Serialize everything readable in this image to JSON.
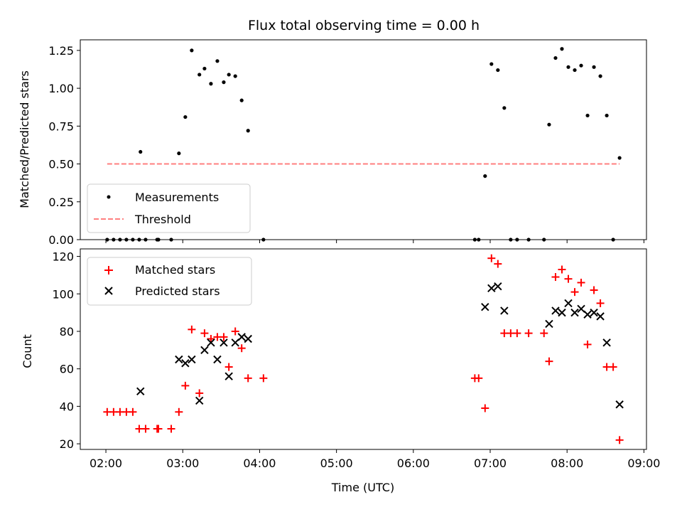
{
  "chart_data": [
    {
      "type": "scatter",
      "title": "Flux total observing time = 0.00 h",
      "xlabel": "",
      "ylabel": "Matched/Predicted stars",
      "xlim": [
        "01:40",
        "09:02"
      ],
      "ylim": [
        0,
        1.32
      ],
      "x_ticks": [
        "02:00",
        "03:00",
        "04:00",
        "05:00",
        "06:00",
        "07:00",
        "08:00",
        "09:00"
      ],
      "y_ticks": [
        "0.00",
        "0.25",
        "0.50",
        "0.75",
        "1.00",
        "1.25"
      ],
      "legend_position": "lower-left",
      "series": [
        {
          "name": "Measurements",
          "marker": "dot",
          "color": "#000000",
          "points": [
            [
              "02:01",
              0
            ],
            [
              "02:06",
              0
            ],
            [
              "02:11",
              0
            ],
            [
              "02:16",
              0
            ],
            [
              "02:21",
              0
            ],
            [
              "02:26",
              0
            ],
            [
              "02:27",
              0.58
            ],
            [
              "02:31",
              0
            ],
            [
              "02:40",
              0
            ],
            [
              "02:41",
              0
            ],
            [
              "02:51",
              0
            ],
            [
              "02:57",
              0.57
            ],
            [
              "03:02",
              0.81
            ],
            [
              "03:07",
              1.25
            ],
            [
              "03:13",
              1.09
            ],
            [
              "03:17",
              1.13
            ],
            [
              "03:22",
              1.03
            ],
            [
              "03:27",
              1.18
            ],
            [
              "03:32",
              1.04
            ],
            [
              "03:36",
              1.09
            ],
            [
              "03:41",
              1.08
            ],
            [
              "03:46",
              0.92
            ],
            [
              "03:51",
              0.72
            ],
            [
              "04:03",
              0
            ],
            [
              "06:48",
              0
            ],
            [
              "06:51",
              0
            ],
            [
              "06:56",
              0.42
            ],
            [
              "07:01",
              1.16
            ],
            [
              "07:06",
              1.12
            ],
            [
              "07:11",
              0.87
            ],
            [
              "07:16",
              0
            ],
            [
              "07:21",
              0
            ],
            [
              "07:30",
              0
            ],
            [
              "07:42",
              0
            ],
            [
              "07:46",
              0.76
            ],
            [
              "07:51",
              1.2
            ],
            [
              "07:56",
              1.26
            ],
            [
              "08:01",
              1.14
            ],
            [
              "08:06",
              1.12
            ],
            [
              "08:11",
              1.15
            ],
            [
              "08:16",
              0.82
            ],
            [
              "08:21",
              1.14
            ],
            [
              "08:26",
              1.08
            ],
            [
              "08:31",
              0.82
            ],
            [
              "08:36",
              0
            ],
            [
              "08:41",
              0.54
            ]
          ]
        },
        {
          "name": "Threshold",
          "marker": "dashed-line",
          "color": "#ff7f7f",
          "points": [
            [
              "02:01",
              0.5
            ],
            [
              "08:41",
              0.5
            ]
          ]
        }
      ]
    },
    {
      "type": "scatter",
      "title": "",
      "xlabel": "Time (UTC)",
      "ylabel": "Count",
      "xlim": [
        "01:40",
        "09:02"
      ],
      "ylim": [
        17,
        124
      ],
      "x_ticks": [
        "02:00",
        "03:00",
        "04:00",
        "05:00",
        "06:00",
        "07:00",
        "08:00",
        "09:00"
      ],
      "y_ticks": [
        "20",
        "40",
        "60",
        "80",
        "100",
        "120"
      ],
      "legend_position": "upper-left",
      "series": [
        {
          "name": "Matched stars",
          "marker": "plus",
          "color": "#ff0000",
          "points": [
            [
              "02:01",
              37
            ],
            [
              "02:06",
              37
            ],
            [
              "02:11",
              37
            ],
            [
              "02:16",
              37
            ],
            [
              "02:21",
              37
            ],
            [
              "02:26",
              28
            ],
            [
              "02:31",
              28
            ],
            [
              "02:40",
              28
            ],
            [
              "02:41",
              28
            ],
            [
              "02:51",
              28
            ],
            [
              "02:57",
              37
            ],
            [
              "03:02",
              51
            ],
            [
              "03:07",
              81
            ],
            [
              "03:13",
              47
            ],
            [
              "03:17",
              79
            ],
            [
              "03:22",
              76
            ],
            [
              "03:27",
              77
            ],
            [
              "03:32",
              77
            ],
            [
              "03:36",
              61
            ],
            [
              "03:41",
              80
            ],
            [
              "03:46",
              71
            ],
            [
              "03:51",
              55
            ],
            [
              "04:03",
              55
            ],
            [
              "06:48",
              55
            ],
            [
              "06:51",
              55
            ],
            [
              "06:56",
              39
            ],
            [
              "07:01",
              119
            ],
            [
              "07:06",
              116
            ],
            [
              "07:11",
              79
            ],
            [
              "07:16",
              79
            ],
            [
              "07:21",
              79
            ],
            [
              "07:30",
              79
            ],
            [
              "07:42",
              79
            ],
            [
              "07:46",
              64
            ],
            [
              "07:51",
              109
            ],
            [
              "07:56",
              113
            ],
            [
              "08:01",
              108
            ],
            [
              "08:06",
              101
            ],
            [
              "08:11",
              106
            ],
            [
              "08:16",
              73
            ],
            [
              "08:21",
              102
            ],
            [
              "08:26",
              95
            ],
            [
              "08:31",
              61
            ],
            [
              "08:36",
              61
            ],
            [
              "08:41",
              22
            ]
          ]
        },
        {
          "name": "Predicted stars",
          "marker": "x",
          "color": "#000000",
          "points": [
            [
              "02:27",
              48
            ],
            [
              "02:57",
              65
            ],
            [
              "03:02",
              63
            ],
            [
              "03:07",
              65
            ],
            [
              "03:13",
              43
            ],
            [
              "03:17",
              70
            ],
            [
              "03:22",
              74
            ],
            [
              "03:27",
              65
            ],
            [
              "03:32",
              74
            ],
            [
              "03:36",
              56
            ],
            [
              "03:41",
              74
            ],
            [
              "03:46",
              77
            ],
            [
              "03:51",
              76
            ],
            [
              "06:56",
              93
            ],
            [
              "07:01",
              103
            ],
            [
              "07:06",
              104
            ],
            [
              "07:11",
              91
            ],
            [
              "07:46",
              84
            ],
            [
              "07:51",
              91
            ],
            [
              "07:56",
              90
            ],
            [
              "08:01",
              95
            ],
            [
              "08:06",
              90
            ],
            [
              "08:11",
              92
            ],
            [
              "08:16",
              89
            ],
            [
              "08:21",
              90
            ],
            [
              "08:26",
              88
            ],
            [
              "08:31",
              74
            ],
            [
              "08:41",
              41
            ]
          ]
        }
      ]
    }
  ]
}
